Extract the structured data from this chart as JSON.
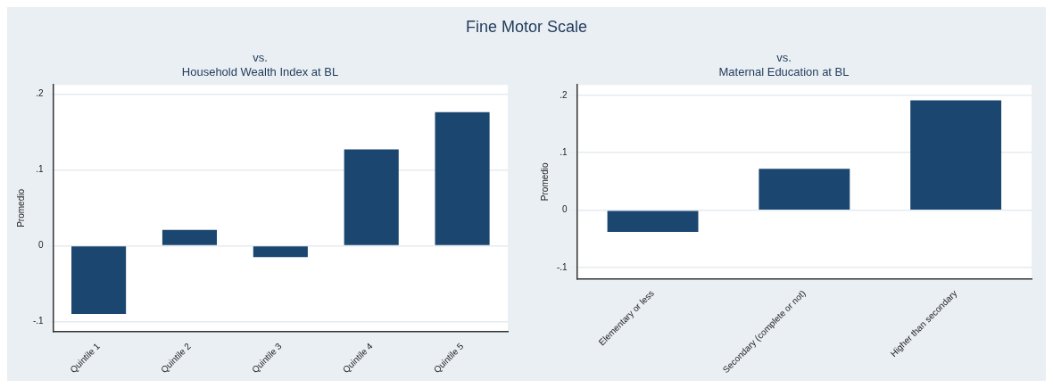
{
  "chart_data": [
    {
      "type": "other",
      "title": "Fine Motor Scale"
    },
    {
      "type": "bar",
      "title": "vs.\nHousehold Wealth Index at BL",
      "ylabel": "Promedio",
      "categories": [
        "Quintile 1",
        "Quintile 2",
        "Quintile 3",
        "Quintile 4",
        "Quintile 5"
      ],
      "values": [
        -0.09,
        0.021,
        -0.015,
        0.127,
        0.176
      ],
      "color": "#1a4670",
      "ylim": [
        -0.113,
        0.212
      ],
      "yticks": [
        {
          "value": -0.1,
          "label": "-.1"
        },
        0,
        {
          "value": 0.1,
          "label": ".1"
        },
        {
          "value": 0.2,
          "label": ".2"
        }
      ],
      "grid": "y",
      "legend": false
    },
    {
      "type": "bar",
      "title": "vs.\nMaternal Education at BL",
      "ylabel": "Promedio",
      "categories": [
        "Elementary or less",
        "Secondary (complete or not)",
        "Higher than secondary"
      ],
      "values": [
        -0.038,
        0.072,
        0.191
      ],
      "color": "#1a4670",
      "ylim": [
        -0.119,
        0.218
      ],
      "yticks": [
        {
          "value": -0.1,
          "label": "-.1"
        },
        0,
        {
          "value": 0.1,
          "label": ".1"
        },
        {
          "value": 0.2,
          "label": ".2"
        }
      ],
      "grid": "y",
      "legend": false
    }
  ]
}
